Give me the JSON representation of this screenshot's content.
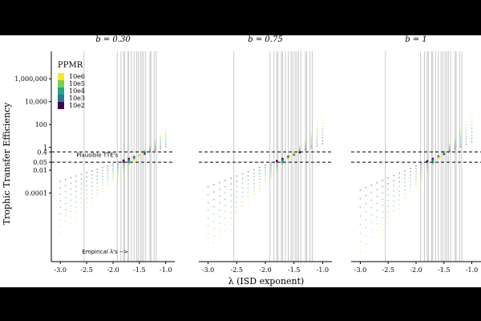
{
  "chart_data": {
    "type": "scatter",
    "ylabel": "Trophic Transfer Efficiency",
    "xlabel": "λ (ISD exponent)",
    "y_scale": "log",
    "y_ticks": [
      {
        "value": 1000000,
        "label": "1,000,000"
      },
      {
        "value": 10000,
        "label": "10,000"
      },
      {
        "value": 100,
        "label": "100"
      },
      {
        "value": 1,
        "label": "1"
      },
      {
        "value": 0.4,
        "label": "0.4"
      },
      {
        "value": 0.05,
        "label": "0.05"
      },
      {
        "value": 0.01,
        "label": "0.01"
      },
      {
        "value": 0.0001,
        "label": "0.0001"
      }
    ],
    "x_ticks": [
      {
        "value": -3.0,
        "label": "-3.0"
      },
      {
        "value": -2.5,
        "label": "-2.5"
      },
      {
        "value": -2.0,
        "label": "-2.0"
      },
      {
        "value": -1.5,
        "label": "-1.5"
      },
      {
        "value": -1.0,
        "label": "-1.0"
      }
    ],
    "xlim": [
      -3.05,
      -0.95
    ],
    "ylim": [
      1e-10,
      10000000.0
    ],
    "legend": {
      "title": "PPMR",
      "position": "top-left",
      "labels": [
        "10e6",
        "10e5",
        "10e4",
        "10e3",
        "10e2"
      ],
      "colors": [
        "#fde725",
        "#7ad151",
        "#22a884",
        "#2a788e",
        "#440154"
      ]
    },
    "reference_lines": [
      0.4,
      0.05
    ],
    "reference_label": "Plausible TTE's",
    "empirical_label": "Empirical λ's -->",
    "empirical_lambdas": [
      -2.55,
      -1.92,
      -1.85,
      -1.8,
      -1.78,
      -1.72,
      -1.7,
      -1.65,
      -1.6,
      -1.55,
      -1.52,
      -1.48,
      -1.45,
      -1.42,
      -1.38,
      -1.3,
      -1.28,
      -1.22,
      -1.18
    ],
    "lambda_values": [
      -3.0,
      -2.9,
      -2.8,
      -2.7,
      -2.6,
      -2.5,
      -2.4,
      -2.3,
      -2.2,
      -2.1,
      -2.0,
      -1.9,
      -1.8,
      -1.7,
      -1.6,
      -1.5,
      -1.4,
      -1.3,
      -1.2,
      -1.1,
      -1.0
    ],
    "ppmr_exponents": [
      2,
      2.5,
      3,
      3.5,
      4,
      4.5,
      5,
      5.5,
      6
    ],
    "panels": [
      {
        "title": "b = 0.30",
        "b": 0.3
      },
      {
        "title": "b = 0.75",
        "b": 0.75
      },
      {
        "title": "b = 1",
        "b": 1
      }
    ]
  }
}
